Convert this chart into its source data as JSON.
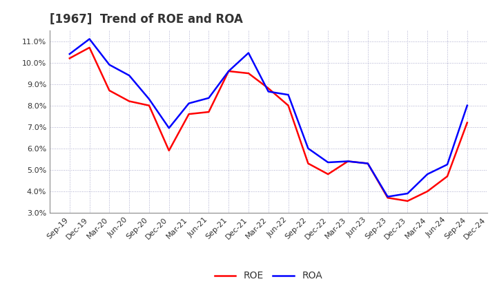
{
  "title": "[1967]  Trend of ROE and ROA",
  "labels": [
    "Sep-19",
    "Dec-19",
    "Mar-20",
    "Jun-20",
    "Sep-20",
    "Dec-20",
    "Mar-21",
    "Jun-21",
    "Sep-21",
    "Dec-21",
    "Mar-22",
    "Jun-22",
    "Sep-22",
    "Dec-22",
    "Mar-23",
    "Jun-23",
    "Sep-23",
    "Dec-23",
    "Mar-24",
    "Jun-24",
    "Sep-24",
    "Dec-24"
  ],
  "ROE": [
    10.2,
    10.7,
    8.7,
    8.2,
    8.0,
    5.9,
    7.6,
    7.7,
    9.6,
    9.5,
    8.8,
    8.0,
    5.3,
    4.8,
    5.4,
    5.3,
    3.7,
    3.55,
    4.0,
    4.7,
    7.2,
    null
  ],
  "ROA": [
    10.4,
    11.1,
    9.9,
    9.4,
    8.3,
    6.95,
    8.1,
    8.35,
    9.6,
    10.45,
    8.65,
    8.5,
    6.0,
    5.35,
    5.4,
    5.3,
    3.75,
    3.9,
    4.8,
    5.25,
    8.0,
    null
  ],
  "roe_color": "#FF0000",
  "roa_color": "#0000FF",
  "line_width": 1.8,
  "ylim": [
    3.0,
    11.5
  ],
  "yticks": [
    3.0,
    4.0,
    5.0,
    6.0,
    7.0,
    8.0,
    9.0,
    10.0,
    11.0
  ],
  "bg_color": "#FFFFFF",
  "plot_bg_color": "#FFFFFF",
  "grid_color": "#AAAACC",
  "title_fontsize": 12,
  "tick_fontsize": 8,
  "legend_fontsize": 10,
  "title_color": "#333333"
}
